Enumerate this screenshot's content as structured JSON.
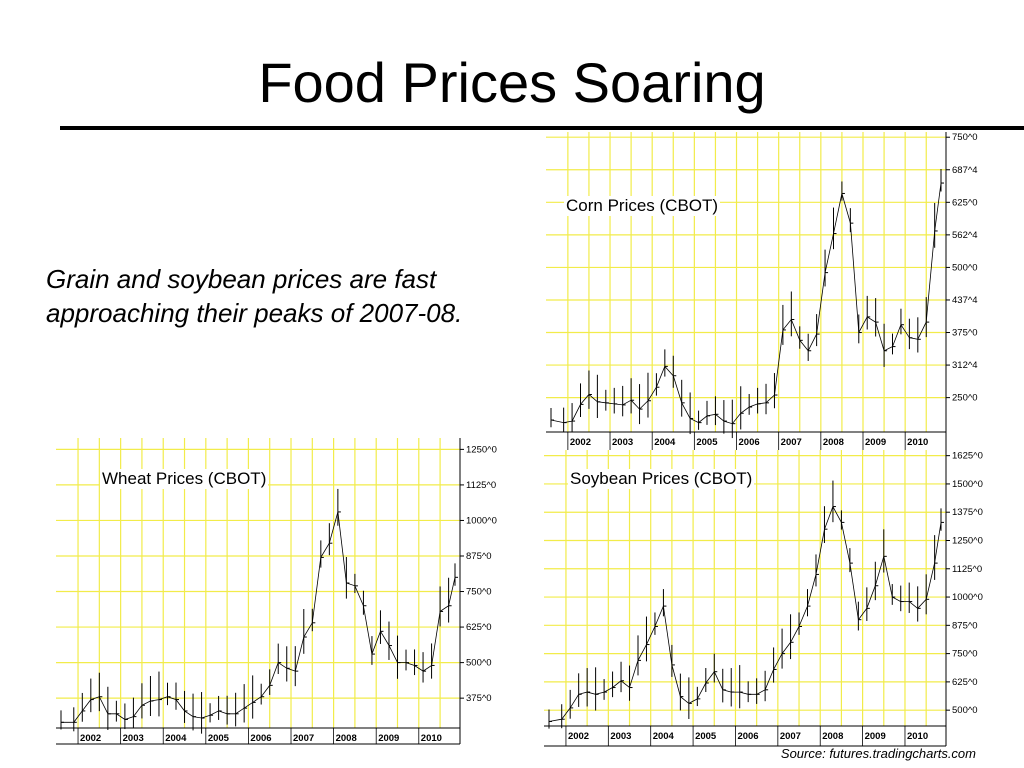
{
  "title": "Food Prices Soaring",
  "caption": "Grain and soybean prices are fast approaching their peaks of 2007-08.",
  "source": "Source: futures.tradingcharts.com",
  "colors": {
    "grid": "#f2ec4a",
    "bars": "#000000",
    "background": "#ffffff"
  },
  "chart_data": [
    {
      "id": "corn",
      "type": "line",
      "label": "Corn Prices (CBOT)",
      "x_labels": [
        "2002",
        "2003",
        "2004",
        "2005",
        "2006",
        "2007",
        "2008",
        "2009",
        "2010"
      ],
      "x_range": [
        2001.6,
        2010.85
      ],
      "y_ticks": [
        250,
        312.5,
        375,
        437.5,
        500,
        562.5,
        625,
        687.5,
        750
      ],
      "y_tick_labels": [
        "250^0",
        "312^4",
        "375^0",
        "437^4",
        "500^0",
        "562^4",
        "625^0",
        "687^4",
        "750^0"
      ],
      "y_range": [
        184,
        760
      ],
      "points": [
        [
          2001.6,
          207
        ],
        [
          2001.9,
          202
        ],
        [
          2002.1,
          205
        ],
        [
          2002.3,
          237
        ],
        [
          2002.5,
          256
        ],
        [
          2002.7,
          242
        ],
        [
          2002.9,
          240
        ],
        [
          2003.1,
          238
        ],
        [
          2003.3,
          236
        ],
        [
          2003.5,
          245
        ],
        [
          2003.7,
          228
        ],
        [
          2003.9,
          244
        ],
        [
          2004.1,
          270
        ],
        [
          2004.3,
          310
        ],
        [
          2004.5,
          292
        ],
        [
          2004.7,
          240
        ],
        [
          2004.9,
          210
        ],
        [
          2005.1,
          202
        ],
        [
          2005.3,
          215
        ],
        [
          2005.5,
          218
        ],
        [
          2005.7,
          205
        ],
        [
          2005.9,
          200
        ],
        [
          2006.1,
          220
        ],
        [
          2006.3,
          232
        ],
        [
          2006.5,
          238
        ],
        [
          2006.7,
          240
        ],
        [
          2006.9,
          255
        ],
        [
          2007.1,
          380
        ],
        [
          2007.3,
          400
        ],
        [
          2007.5,
          360
        ],
        [
          2007.7,
          340
        ],
        [
          2007.9,
          372
        ],
        [
          2008.1,
          490
        ],
        [
          2008.3,
          565
        ],
        [
          2008.5,
          642
        ],
        [
          2008.7,
          585
        ],
        [
          2008.9,
          375
        ],
        [
          2009.1,
          405
        ],
        [
          2009.3,
          395
        ],
        [
          2009.5,
          340
        ],
        [
          2009.7,
          348
        ],
        [
          2009.9,
          390
        ],
        [
          2010.1,
          365
        ],
        [
          2010.3,
          362
        ],
        [
          2010.5,
          395
        ],
        [
          2010.7,
          570
        ],
        [
          2010.85,
          662
        ]
      ]
    },
    {
      "id": "wheat",
      "type": "line",
      "label": "Wheat Prices (CBOT)",
      "x_labels": [
        "2002",
        "2003",
        "2004",
        "2005",
        "2006",
        "2007",
        "2008",
        "2009",
        "2010"
      ],
      "x_range": [
        2001.6,
        2010.85
      ],
      "y_ticks": [
        375,
        500,
        625,
        750,
        875,
        1000,
        1125,
        1250
      ],
      "y_tick_labels": [
        "375^0",
        "500^0",
        "625^0",
        "750^0",
        "875^0",
        "1000^0",
        "1125^0",
        "1250^0"
      ],
      "y_range": [
        270,
        1290
      ],
      "points": [
        [
          2001.6,
          290
        ],
        [
          2001.9,
          290
        ],
        [
          2002.1,
          330
        ],
        [
          2002.3,
          370
        ],
        [
          2002.5,
          380
        ],
        [
          2002.7,
          320
        ],
        [
          2002.9,
          320
        ],
        [
          2003.1,
          300
        ],
        [
          2003.3,
          310
        ],
        [
          2003.5,
          350
        ],
        [
          2003.7,
          365
        ],
        [
          2003.9,
          370
        ],
        [
          2004.1,
          380
        ],
        [
          2004.3,
          370
        ],
        [
          2004.5,
          330
        ],
        [
          2004.7,
          310
        ],
        [
          2004.9,
          305
        ],
        [
          2005.1,
          315
        ],
        [
          2005.3,
          330
        ],
        [
          2005.5,
          320
        ],
        [
          2005.7,
          320
        ],
        [
          2005.9,
          340
        ],
        [
          2006.1,
          360
        ],
        [
          2006.3,
          380
        ],
        [
          2006.5,
          420
        ],
        [
          2006.7,
          500
        ],
        [
          2006.9,
          480
        ],
        [
          2007.1,
          470
        ],
        [
          2007.3,
          590
        ],
        [
          2007.5,
          640
        ],
        [
          2007.7,
          870
        ],
        [
          2007.9,
          920
        ],
        [
          2008.1,
          1030
        ],
        [
          2008.3,
          780
        ],
        [
          2008.5,
          770
        ],
        [
          2008.7,
          700
        ],
        [
          2008.9,
          530
        ],
        [
          2009.1,
          610
        ],
        [
          2009.3,
          560
        ],
        [
          2009.5,
          500
        ],
        [
          2009.7,
          500
        ],
        [
          2009.9,
          490
        ],
        [
          2010.1,
          470
        ],
        [
          2010.3,
          490
        ],
        [
          2010.5,
          680
        ],
        [
          2010.7,
          700
        ],
        [
          2010.85,
          800
        ]
      ]
    },
    {
      "id": "soybean",
      "type": "line",
      "label": "Soybean Prices (CBOT)",
      "x_labels": [
        "2002",
        "2003",
        "2004",
        "2005",
        "2006",
        "2007",
        "2008",
        "2009",
        "2010"
      ],
      "x_range": [
        2001.6,
        2010.85
      ],
      "y_ticks": [
        500,
        625,
        750,
        875,
        1000,
        1125,
        1250,
        1375,
        1500,
        1625
      ],
      "y_tick_labels": [
        "500^0",
        "625^0",
        "750^0",
        "875^0",
        "1000^0",
        "1125^0",
        "1250^0",
        "1375^0",
        "1500^0",
        "1625^0"
      ],
      "y_range": [
        430,
        1650
      ],
      "points": [
        [
          2001.6,
          450
        ],
        [
          2001.9,
          460
        ],
        [
          2002.1,
          510
        ],
        [
          2002.3,
          570
        ],
        [
          2002.5,
          580
        ],
        [
          2002.7,
          570
        ],
        [
          2002.9,
          580
        ],
        [
          2003.1,
          600
        ],
        [
          2003.3,
          630
        ],
        [
          2003.5,
          600
        ],
        [
          2003.7,
          720
        ],
        [
          2003.9,
          790
        ],
        [
          2004.1,
          870
        ],
        [
          2004.3,
          960
        ],
        [
          2004.5,
          700
        ],
        [
          2004.7,
          560
        ],
        [
          2004.9,
          530
        ],
        [
          2005.1,
          550
        ],
        [
          2005.3,
          620
        ],
        [
          2005.5,
          670
        ],
        [
          2005.7,
          590
        ],
        [
          2005.9,
          580
        ],
        [
          2006.1,
          580
        ],
        [
          2006.3,
          570
        ],
        [
          2006.5,
          570
        ],
        [
          2006.7,
          590
        ],
        [
          2006.9,
          680
        ],
        [
          2007.1,
          750
        ],
        [
          2007.3,
          800
        ],
        [
          2007.5,
          870
        ],
        [
          2007.7,
          960
        ],
        [
          2007.9,
          1100
        ],
        [
          2008.1,
          1300
        ],
        [
          2008.3,
          1400
        ],
        [
          2008.5,
          1330
        ],
        [
          2008.7,
          1150
        ],
        [
          2008.9,
          900
        ],
        [
          2009.1,
          950
        ],
        [
          2009.3,
          1050
        ],
        [
          2009.5,
          1180
        ],
        [
          2009.7,
          1000
        ],
        [
          2009.9,
          980
        ],
        [
          2010.1,
          980
        ],
        [
          2010.3,
          950
        ],
        [
          2010.5,
          990
        ],
        [
          2010.7,
          1150
        ],
        [
          2010.85,
          1330
        ]
      ]
    }
  ]
}
